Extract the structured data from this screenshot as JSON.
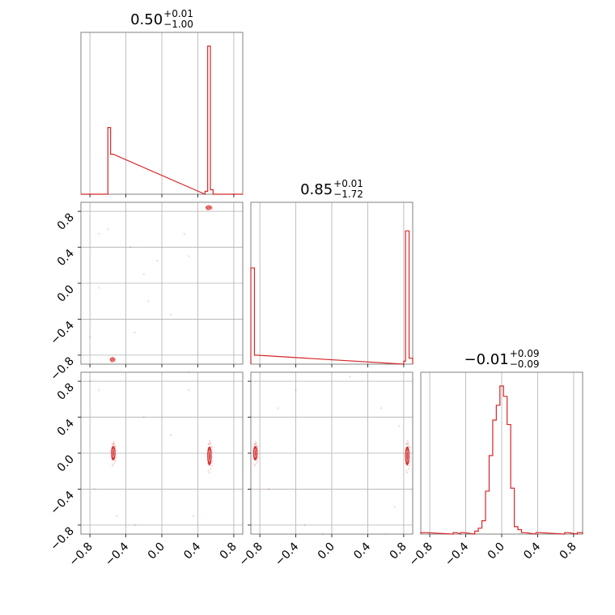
{
  "chart_data": {
    "type": "corner",
    "color": "#d62728",
    "tick_labels": [
      "−0.8",
      "−0.4",
      "0.0",
      "0.4",
      "0.8"
    ],
    "tick_values": [
      -0.8,
      -0.4,
      0.0,
      0.4,
      0.8
    ],
    "parameters": [
      {
        "title": "0.50",
        "err_plus": "+0.01",
        "err_minus": "−1.00",
        "range": [
          -0.9,
          0.9
        ]
      },
      {
        "title": "0.85",
        "err_plus": "+0.01",
        "err_minus": "−1.72",
        "range": [
          -0.9,
          0.9
        ]
      },
      {
        "title": "−0.01",
        "err_plus": "+0.09",
        "err_minus": "−0.09",
        "range": [
          -0.9,
          0.9
        ]
      }
    ],
    "histograms": [
      {
        "param": 0,
        "bins": [
          [
            -0.6,
            -0.57,
            0.45
          ],
          [
            -0.57,
            -0.54,
            0.27
          ],
          [
            0.48,
            0.51,
            0.02
          ],
          [
            0.51,
            0.54,
            1.0
          ],
          [
            0.54,
            0.57,
            0.03
          ]
        ]
      },
      {
        "param": 1,
        "bins": [
          [
            -0.9,
            -0.86,
            0.65
          ],
          [
            -0.86,
            -0.82,
            0.06
          ],
          [
            0.8,
            0.82,
            0.02
          ],
          [
            0.82,
            0.86,
            0.9
          ],
          [
            0.86,
            0.9,
            0.04
          ]
        ]
      },
      {
        "param": 2,
        "bins": [
          [
            -0.9,
            -0.84,
            0.01
          ],
          [
            -0.54,
            -0.5,
            0.01
          ],
          [
            -0.46,
            -0.42,
            0.01
          ],
          [
            -0.3,
            -0.26,
            0.02
          ],
          [
            -0.26,
            -0.22,
            0.04
          ],
          [
            -0.22,
            -0.18,
            0.09
          ],
          [
            -0.18,
            -0.14,
            0.29
          ],
          [
            -0.14,
            -0.1,
            0.53
          ],
          [
            -0.1,
            -0.06,
            0.77
          ],
          [
            -0.06,
            -0.02,
            0.87
          ],
          [
            -0.02,
            0.02,
            1.0
          ],
          [
            0.02,
            0.06,
            0.93
          ],
          [
            0.06,
            0.1,
            0.74
          ],
          [
            0.1,
            0.14,
            0.31
          ],
          [
            0.14,
            0.18,
            0.05
          ],
          [
            0.18,
            0.22,
            0.03
          ],
          [
            0.22,
            0.26,
            0.01
          ],
          [
            0.38,
            0.42,
            0.01
          ],
          [
            0.7,
            0.74,
            0.01
          ],
          [
            0.84,
            0.9,
            0.01
          ]
        ]
      }
    ],
    "scatter_2d": [
      {
        "x_param": 0,
        "y_param": 1,
        "clusters": [
          {
            "x": 0.52,
            "y": 0.84,
            "w": 0.05,
            "h": 0.03
          },
          {
            "x": -0.55,
            "y": -0.85,
            "w": 0.04,
            "h": 0.03
          }
        ],
        "outliers": [
          [
            -0.7,
            0.55
          ],
          [
            -0.35,
            0.4
          ],
          [
            -0.7,
            -0.05
          ],
          [
            -0.3,
            -0.55
          ],
          [
            -0.2,
            0.1
          ],
          [
            0.3,
            0.3
          ],
          [
            -0.15,
            -0.2
          ],
          [
            0.1,
            -0.35
          ],
          [
            0.25,
            0.55
          ],
          [
            -0.6,
            0.6
          ],
          [
            -0.8,
            -0.6
          ],
          [
            -0.05,
            0.25
          ]
        ]
      },
      {
        "x_param": 0,
        "y_param": 2,
        "clusters": [
          {
            "x": -0.54,
            "y": 0.0,
            "w": 0.04,
            "h": 0.15
          },
          {
            "x": 0.53,
            "y": -0.03,
            "w": 0.04,
            "h": 0.2
          }
        ],
        "outliers": [
          [
            -0.7,
            0.7
          ],
          [
            -0.3,
            -0.8
          ],
          [
            0.3,
            0.9
          ],
          [
            -0.75,
            -0.4
          ],
          [
            0.35,
            -0.7
          ],
          [
            -0.2,
            0.4
          ],
          [
            0.1,
            0.2
          ],
          [
            -0.5,
            -0.7
          ],
          [
            0.3,
            0.7
          ],
          [
            -0.8,
            0.8
          ]
        ]
      },
      {
        "x_param": 1,
        "y_param": 2,
        "clusters": [
          {
            "x": -0.85,
            "y": 0.0,
            "w": 0.04,
            "h": 0.15
          },
          {
            "x": 0.84,
            "y": -0.03,
            "w": 0.04,
            "h": 0.2
          }
        ],
        "outliers": [
          [
            -0.6,
            0.5
          ],
          [
            -0.3,
            -0.8
          ],
          [
            0.55,
            0.5
          ],
          [
            0.7,
            -0.6
          ],
          [
            -0.7,
            -0.4
          ],
          [
            0.2,
            0.85
          ],
          [
            -0.1,
            -0.9
          ],
          [
            0.75,
            0.3
          ],
          [
            -0.4,
            0.7
          ],
          [
            0.6,
            -0.9
          ]
        ]
      }
    ]
  }
}
